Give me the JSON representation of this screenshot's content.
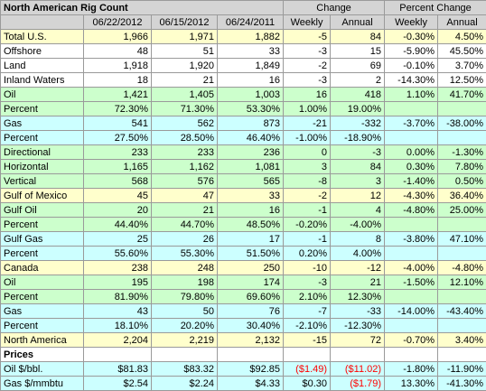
{
  "header": {
    "title": "North American Rig Count",
    "change": "Change",
    "percent_change": "Percent Change",
    "columns": [
      "06/22/2012",
      "06/15/2012",
      "06/24/2011",
      "Weekly",
      "Annual",
      "Weekly",
      "Annual"
    ]
  },
  "rows": [
    [
      "Total U.S.",
      "1,966",
      "1,971",
      "1,882",
      "-5",
      "84",
      "-0.30%",
      "4.50%"
    ],
    [
      "Offshore",
      "48",
      "51",
      "33",
      "-3",
      "15",
      "-5.90%",
      "45.50%"
    ],
    [
      "Land",
      "1,918",
      "1,920",
      "1,849",
      "-2",
      "69",
      "-0.10%",
      "3.70%"
    ],
    [
      "Inland Waters",
      "18",
      "21",
      "16",
      "-3",
      "2",
      "-14.30%",
      "12.50%"
    ],
    [
      "Oil",
      "1,421",
      "1,405",
      "1,003",
      "16",
      "418",
      "1.10%",
      "41.70%"
    ],
    [
      "Percent",
      "72.30%",
      "71.30%",
      "53.30%",
      "1.00%",
      "19.00%",
      null,
      null
    ],
    [
      "Gas",
      "541",
      "562",
      "873",
      "-21",
      "-332",
      "-3.70%",
      "-38.00%"
    ],
    [
      "Percent",
      "27.50%",
      "28.50%",
      "46.40%",
      "-1.00%",
      "-18.90%",
      null,
      null
    ],
    [
      "Directional",
      "233",
      "233",
      "236",
      "0",
      "-3",
      "0.00%",
      "-1.30%"
    ],
    [
      "Horizontal",
      "1,165",
      "1,162",
      "1,081",
      "3",
      "84",
      "0.30%",
      "7.80%"
    ],
    [
      "Vertical",
      "568",
      "576",
      "565",
      "-8",
      "3",
      "-1.40%",
      "0.50%"
    ],
    [
      "Gulf of Mexico",
      "45",
      "47",
      "33",
      "-2",
      "12",
      "-4.30%",
      "36.40%"
    ],
    [
      "Gulf Oil",
      "20",
      "21",
      "16",
      "-1",
      "4",
      "-4.80%",
      "25.00%"
    ],
    [
      "Percent",
      "44.40%",
      "44.70%",
      "48.50%",
      "-0.20%",
      "-4.00%",
      null,
      null
    ],
    [
      "Gulf Gas",
      "25",
      "26",
      "17",
      "-1",
      "8",
      "-3.80%",
      "47.10%"
    ],
    [
      "Percent",
      "55.60%",
      "55.30%",
      "51.50%",
      "0.20%",
      "4.00%",
      null,
      null
    ],
    [
      "Canada",
      "238",
      "248",
      "250",
      "-10",
      "-12",
      "-4.00%",
      "-4.80%"
    ],
    [
      "Oil",
      "195",
      "198",
      "174",
      "-3",
      "21",
      "-1.50%",
      "12.10%"
    ],
    [
      "Percent",
      "81.90%",
      "79.80%",
      "69.60%",
      "2.10%",
      "12.30%",
      null,
      null
    ],
    [
      "Gas",
      "43",
      "50",
      "76",
      "-7",
      "-33",
      "-14.00%",
      "-43.40%"
    ],
    [
      "Percent",
      "18.10%",
      "20.20%",
      "30.40%",
      "-2.10%",
      "-12.30%",
      null,
      null
    ],
    [
      "North America",
      "2,204",
      "2,219",
      "2,132",
      "-15",
      "72",
      "-0.70%",
      "3.40%"
    ]
  ],
  "prices": {
    "title": "Prices",
    "rows": [
      [
        "Oil $/bbl.",
        "$81.83",
        "$83.32",
        "$92.85",
        "($1.49)",
        "($11.02)",
        "-1.80%",
        "-11.90%"
      ],
      [
        "Gas $/mmbtu",
        "$2.54",
        "$2.24",
        "$4.33",
        "$0.30",
        "($1.79)",
        "13.30%",
        "-41.30%"
      ]
    ]
  }
}
